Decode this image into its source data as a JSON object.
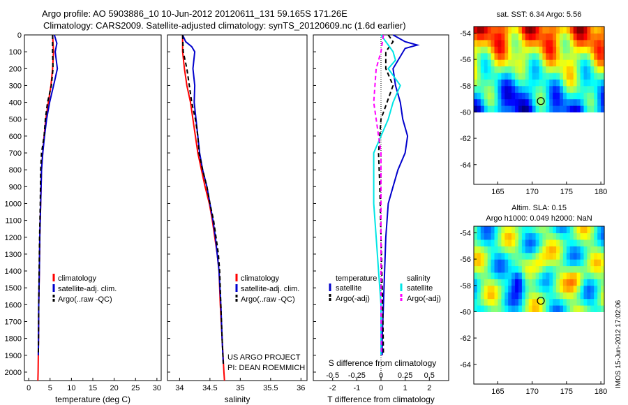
{
  "header": {
    "line1": "Argo profile: AO 5903886_10 10-Jun-2012 20120611_131 59.165S 171.26E",
    "line2": "Climatology: CARS2009. Satellite-adjusted climatology: synTS_20120609.nc (1.6d earlier)"
  },
  "footer": {
    "credit1": "US ARGO PROJECT",
    "credit2": "PI: DEAN ROEMMICH",
    "stamp": "IMOS 15-Jun-2012 17:02:06"
  },
  "colors": {
    "climatology": "#ff0000",
    "satellite_adj": "#0000cc",
    "argo": "#000000",
    "cyan": "#00e5e5",
    "magenta": "#ff00ff"
  },
  "chart_data": [
    {
      "id": "temperature",
      "type": "line",
      "xlabel": "temperature (deg C)",
      "ylabel": "",
      "xlim": [
        -1,
        31
      ],
      "ylim": [
        2050,
        0
      ],
      "xticks": [
        0,
        5,
        10,
        15,
        20,
        25,
        30
      ],
      "yticks": [
        0,
        100,
        200,
        300,
        400,
        500,
        600,
        700,
        800,
        900,
        1000,
        1100,
        1200,
        1300,
        1400,
        1500,
        1600,
        1700,
        1800,
        1900,
        2000
      ],
      "legend": {
        "placement": "lower-right",
        "entries": [
          "climatology",
          "satellite-adj. clim.",
          "Argo(..raw -QC)"
        ]
      },
      "series": [
        {
          "name": "climatology",
          "color": "#ff0000",
          "dash": false,
          "points": [
            [
              5.6,
              0
            ],
            [
              5.8,
              100
            ],
            [
              5.6,
              200
            ],
            [
              5.2,
              300
            ],
            [
              4.6,
              400
            ],
            [
              4.0,
              500
            ],
            [
              3.6,
              600
            ],
            [
              3.3,
              700
            ],
            [
              3.0,
              800
            ],
            [
              2.8,
              1000
            ],
            [
              2.6,
              1200
            ],
            [
              2.5,
              1400
            ],
            [
              2.35,
              1600
            ],
            [
              2.3,
              1800
            ],
            [
              2.2,
              2000
            ],
            [
              2.15,
              2050
            ]
          ]
        },
        {
          "name": "satellite-adj. clim.",
          "color": "#0000cc",
          "dash": false,
          "points": [
            [
              6.0,
              0
            ],
            [
              6.6,
              50
            ],
            [
              6.2,
              100
            ],
            [
              6.7,
              200
            ],
            [
              6.0,
              280
            ],
            [
              4.9,
              400
            ],
            [
              4.2,
              500
            ],
            [
              3.7,
              600
            ],
            [
              3.3,
              700
            ],
            [
              3.0,
              800
            ],
            [
              2.8,
              1000
            ],
            [
              2.6,
              1200
            ],
            [
              2.5,
              1400
            ],
            [
              2.35,
              1600
            ],
            [
              2.3,
              1800
            ],
            [
              2.25,
              1900
            ]
          ]
        },
        {
          "name": "Argo(..raw -QC)",
          "color": "#000000",
          "dash": true,
          "points": [
            [
              5.6,
              0
            ],
            [
              5.6,
              100
            ],
            [
              5.7,
              200
            ],
            [
              5.3,
              300
            ],
            [
              4.4,
              400
            ],
            [
              3.9,
              500
            ],
            [
              3.6,
              600
            ],
            [
              3.0,
              700
            ],
            [
              2.8,
              800
            ],
            [
              2.7,
              1000
            ],
            [
              2.55,
              1200
            ],
            [
              2.45,
              1400
            ],
            [
              2.35,
              1600
            ],
            [
              2.3,
              1800
            ],
            [
              2.25,
              1900
            ]
          ]
        }
      ]
    },
    {
      "id": "salinity",
      "type": "line",
      "xlabel": "salinity",
      "ylabel": "",
      "xlim": [
        33.8,
        36.1
      ],
      "ylim": [
        2050,
        0
      ],
      "xticks": [
        34,
        34.5,
        35,
        35.5,
        36
      ],
      "xticklabels": [
        "34",
        "34.5",
        "35",
        "35.5",
        "36"
      ],
      "legend": {
        "placement": "lower-right",
        "entries": [
          "climatology",
          "satellite-adj. clim.",
          "Argo(..raw -QC)"
        ]
      },
      "series": [
        {
          "name": "climatology",
          "color": "#ff0000",
          "dash": false,
          "points": [
            [
              34.05,
              0
            ],
            [
              34.05,
              100
            ],
            [
              34.08,
              200
            ],
            [
              34.12,
              300
            ],
            [
              34.18,
              400
            ],
            [
              34.22,
              500
            ],
            [
              34.26,
              600
            ],
            [
              34.3,
              700
            ],
            [
              34.36,
              800
            ],
            [
              34.42,
              900
            ],
            [
              34.49,
              1000
            ],
            [
              34.54,
              1100
            ],
            [
              34.58,
              1200
            ],
            [
              34.62,
              1300
            ],
            [
              34.65,
              1400
            ],
            [
              34.67,
              1600
            ],
            [
              34.7,
              1800
            ],
            [
              34.73,
              2000
            ],
            [
              34.74,
              2050
            ]
          ]
        },
        {
          "name": "satellite-adj. clim.",
          "color": "#0000cc",
          "dash": false,
          "points": [
            [
              34.05,
              0
            ],
            [
              34.1,
              40
            ],
            [
              34.2,
              70
            ],
            [
              34.25,
              100
            ],
            [
              34.22,
              200
            ],
            [
              34.25,
              300
            ],
            [
              34.24,
              400
            ],
            [
              34.27,
              500
            ],
            [
              34.3,
              600
            ],
            [
              34.33,
              700
            ],
            [
              34.38,
              800
            ],
            [
              34.45,
              900
            ],
            [
              34.5,
              1000
            ],
            [
              34.55,
              1100
            ],
            [
              34.59,
              1200
            ],
            [
              34.62,
              1300
            ],
            [
              34.65,
              1400
            ],
            [
              34.68,
              1600
            ],
            [
              34.7,
              1800
            ],
            [
              34.72,
              1950
            ]
          ]
        },
        {
          "name": "Argo(..raw -QC)",
          "color": "#000000",
          "dash": true,
          "points": [
            [
              34.05,
              0
            ],
            [
              34.06,
              100
            ],
            [
              34.12,
              200
            ],
            [
              34.16,
              300
            ],
            [
              34.2,
              400
            ],
            [
              34.26,
              500
            ],
            [
              34.3,
              600
            ],
            [
              34.32,
              700
            ],
            [
              34.38,
              800
            ],
            [
              34.45,
              900
            ],
            [
              34.5,
              1000
            ],
            [
              34.56,
              1100
            ],
            [
              34.6,
              1200
            ],
            [
              34.64,
              1300
            ],
            [
              34.66,
              1400
            ],
            [
              34.68,
              1600
            ],
            [
              34.7,
              1800
            ],
            [
              34.72,
              1950
            ]
          ]
        }
      ]
    },
    {
      "id": "difference",
      "type": "line",
      "xlabel": "T difference from climatology",
      "s_label": "S difference from climatology",
      "xlim": [
        -2.8,
        2.8
      ],
      "ylim": [
        2050,
        0
      ],
      "xticks": [
        -2,
        -1,
        0,
        1,
        2
      ],
      "s_ticks": [
        -2,
        -1,
        0,
        1,
        2
      ],
      "s_ticklabels": [
        "-0.5",
        "-0.25",
        "0",
        "0.25",
        "0.5"
      ],
      "legend": {
        "placement": "lower-right",
        "headings": [
          "temperature",
          "salinity"
        ],
        "entries": [
          "satellite",
          "Argo(-adj)",
          "satellite",
          "Argo(-adj)"
        ]
      },
      "series": [
        {
          "name": "temperature satellite",
          "color": "#0000cc",
          "dash": false,
          "points": [
            [
              0.5,
              0
            ],
            [
              1.0,
              40
            ],
            [
              1.5,
              60
            ],
            [
              1.0,
              80
            ],
            [
              0.5,
              200
            ],
            [
              0.6,
              300
            ],
            [
              0.8,
              400
            ],
            [
              0.9,
              500
            ],
            [
              1.1,
              600
            ],
            [
              1.0,
              700
            ],
            [
              0.7,
              800
            ],
            [
              0.5,
              900
            ],
            [
              0.3,
              1000
            ],
            [
              0.2,
              1200
            ],
            [
              0.15,
              1400
            ],
            [
              0.1,
              1600
            ],
            [
              0.05,
              1800
            ],
            [
              0.05,
              1900
            ]
          ]
        },
        {
          "name": "temperature Argo(-adj)",
          "color": "#000000",
          "dash": true,
          "points": [
            [
              0.3,
              0
            ],
            [
              0.5,
              40
            ],
            [
              0.2,
              100
            ],
            [
              0.2,
              200
            ],
            [
              0.5,
              300
            ],
            [
              0.0,
              500
            ],
            [
              -0.1,
              700
            ],
            [
              -0.05,
              900
            ],
            [
              0.0,
              1200
            ],
            [
              0.05,
              1500
            ],
            [
              0.08,
              1700
            ],
            [
              0.1,
              1900
            ]
          ]
        },
        {
          "name": "salinity satellite",
          "color": "#00e5e5",
          "dash": false,
          "points": [
            [
              0.0,
              0
            ],
            [
              0.5,
              100
            ],
            [
              0.6,
              150
            ],
            [
              0.3,
              200
            ],
            [
              0.8,
              300
            ],
            [
              0.5,
              400
            ],
            [
              0.3,
              500
            ],
            [
              0.0,
              600
            ],
            [
              -0.3,
              700
            ],
            [
              -0.3,
              1000
            ],
            [
              -0.2,
              1200
            ],
            [
              -0.1,
              1400
            ],
            [
              0.0,
              1600
            ],
            [
              0.0,
              1900
            ]
          ]
        },
        {
          "name": "salinity Argo(-adj)",
          "color": "#ff00ff",
          "dash": true,
          "points": [
            [
              0.1,
              0
            ],
            [
              0.0,
              100
            ],
            [
              -0.2,
              200
            ],
            [
              -0.3,
              400
            ],
            [
              -0.2,
              500
            ],
            [
              -0.1,
              600
            ],
            [
              0.0,
              700
            ],
            [
              0.0,
              900
            ],
            [
              0.0,
              1200
            ],
            [
              0.0,
              1600
            ],
            [
              0.02,
              1900
            ]
          ]
        }
      ]
    },
    {
      "id": "sst-map",
      "type": "heatmap",
      "title": "sat. SST: 6.34 Argo: 5.56",
      "xlim": [
        161.5,
        180.5
      ],
      "ylim": [
        -65.5,
        -53.5
      ],
      "xticks": [
        165,
        170,
        175,
        180
      ],
      "yticks": [
        -54,
        -56,
        -58,
        -60,
        -62,
        -64
      ],
      "data_extent_lat": [
        -53.5,
        -60
      ],
      "float_position": {
        "lon": 171.26,
        "lat": -59.165
      }
    },
    {
      "id": "sla-map",
      "type": "heatmap",
      "title": "Altim. SLA: 0.15",
      "subtitle": "Argo h1000: 0.049 h2000: NaN",
      "xlim": [
        161.5,
        180.5
      ],
      "ylim": [
        -65.5,
        -53.5
      ],
      "xticks": [
        165,
        170,
        175,
        180
      ],
      "yticks": [
        -54,
        -56,
        -58,
        -60,
        -62,
        -64
      ],
      "data_extent_lat": [
        -53.5,
        -60
      ],
      "float_position": {
        "lon": 171.26,
        "lat": -59.165
      }
    }
  ]
}
